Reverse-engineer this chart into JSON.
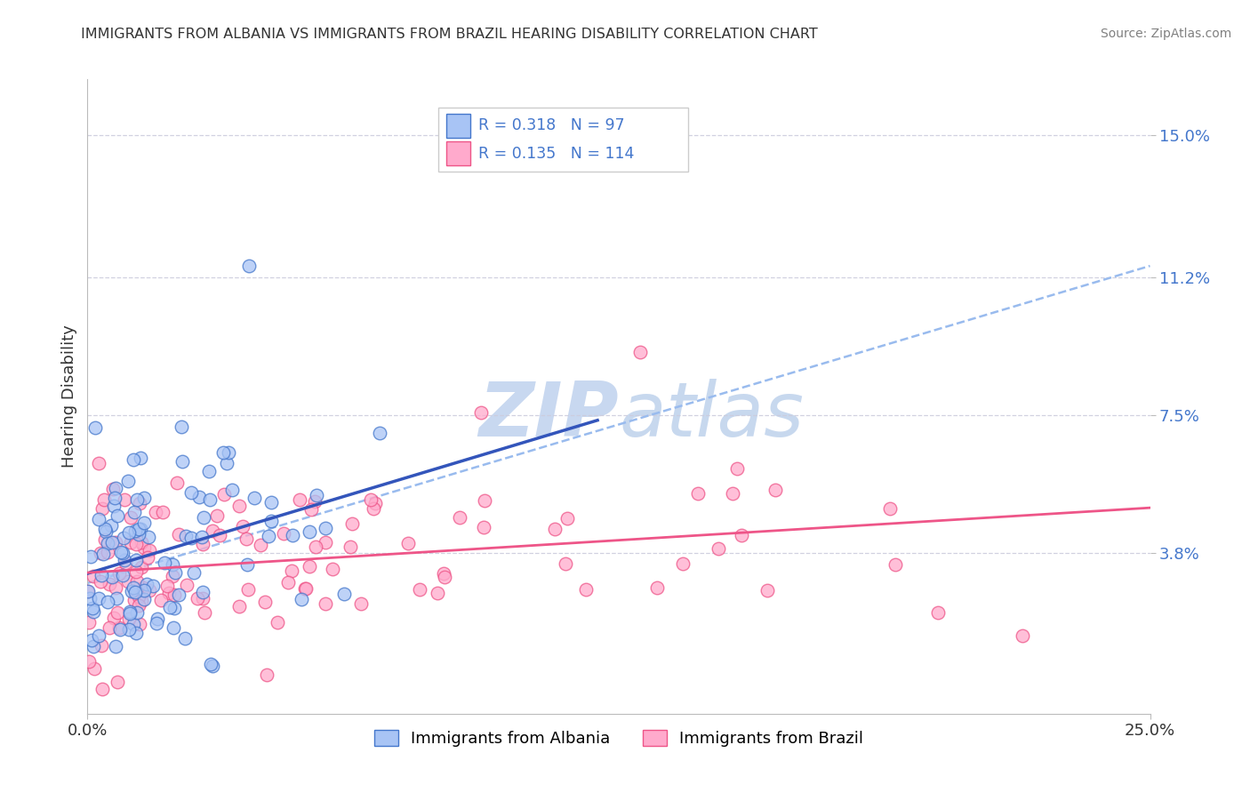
{
  "title": "IMMIGRANTS FROM ALBANIA VS IMMIGRANTS FROM BRAZIL HEARING DISABILITY CORRELATION CHART",
  "source": "Source: ZipAtlas.com",
  "ylabel": "Hearing Disability",
  "xlim": [
    0.0,
    0.25
  ],
  "ylim": [
    -0.005,
    0.165
  ],
  "xticklabels": [
    "0.0%",
    "25.0%"
  ],
  "ytick_positions": [
    0.038,
    0.075,
    0.112,
    0.15
  ],
  "ytick_labels": [
    "3.8%",
    "7.5%",
    "11.2%",
    "15.0%"
  ],
  "albania_fill": "#a8c4f5",
  "albania_edge": "#4477cc",
  "brazil_fill": "#ffaacc",
  "brazil_edge": "#ee5588",
  "albania_R": 0.318,
  "albania_N": 97,
  "brazil_R": 0.135,
  "brazil_N": 114,
  "label_color": "#4477cc",
  "background_color": "#ffffff",
  "hline_color": "#ccccdd",
  "hline_style": "-.",
  "dashed_line_color": "#99bbee",
  "reg_albania_color": "#3355bb",
  "reg_brazil_color": "#ee5588",
  "watermark_color": "#c8d8f0"
}
